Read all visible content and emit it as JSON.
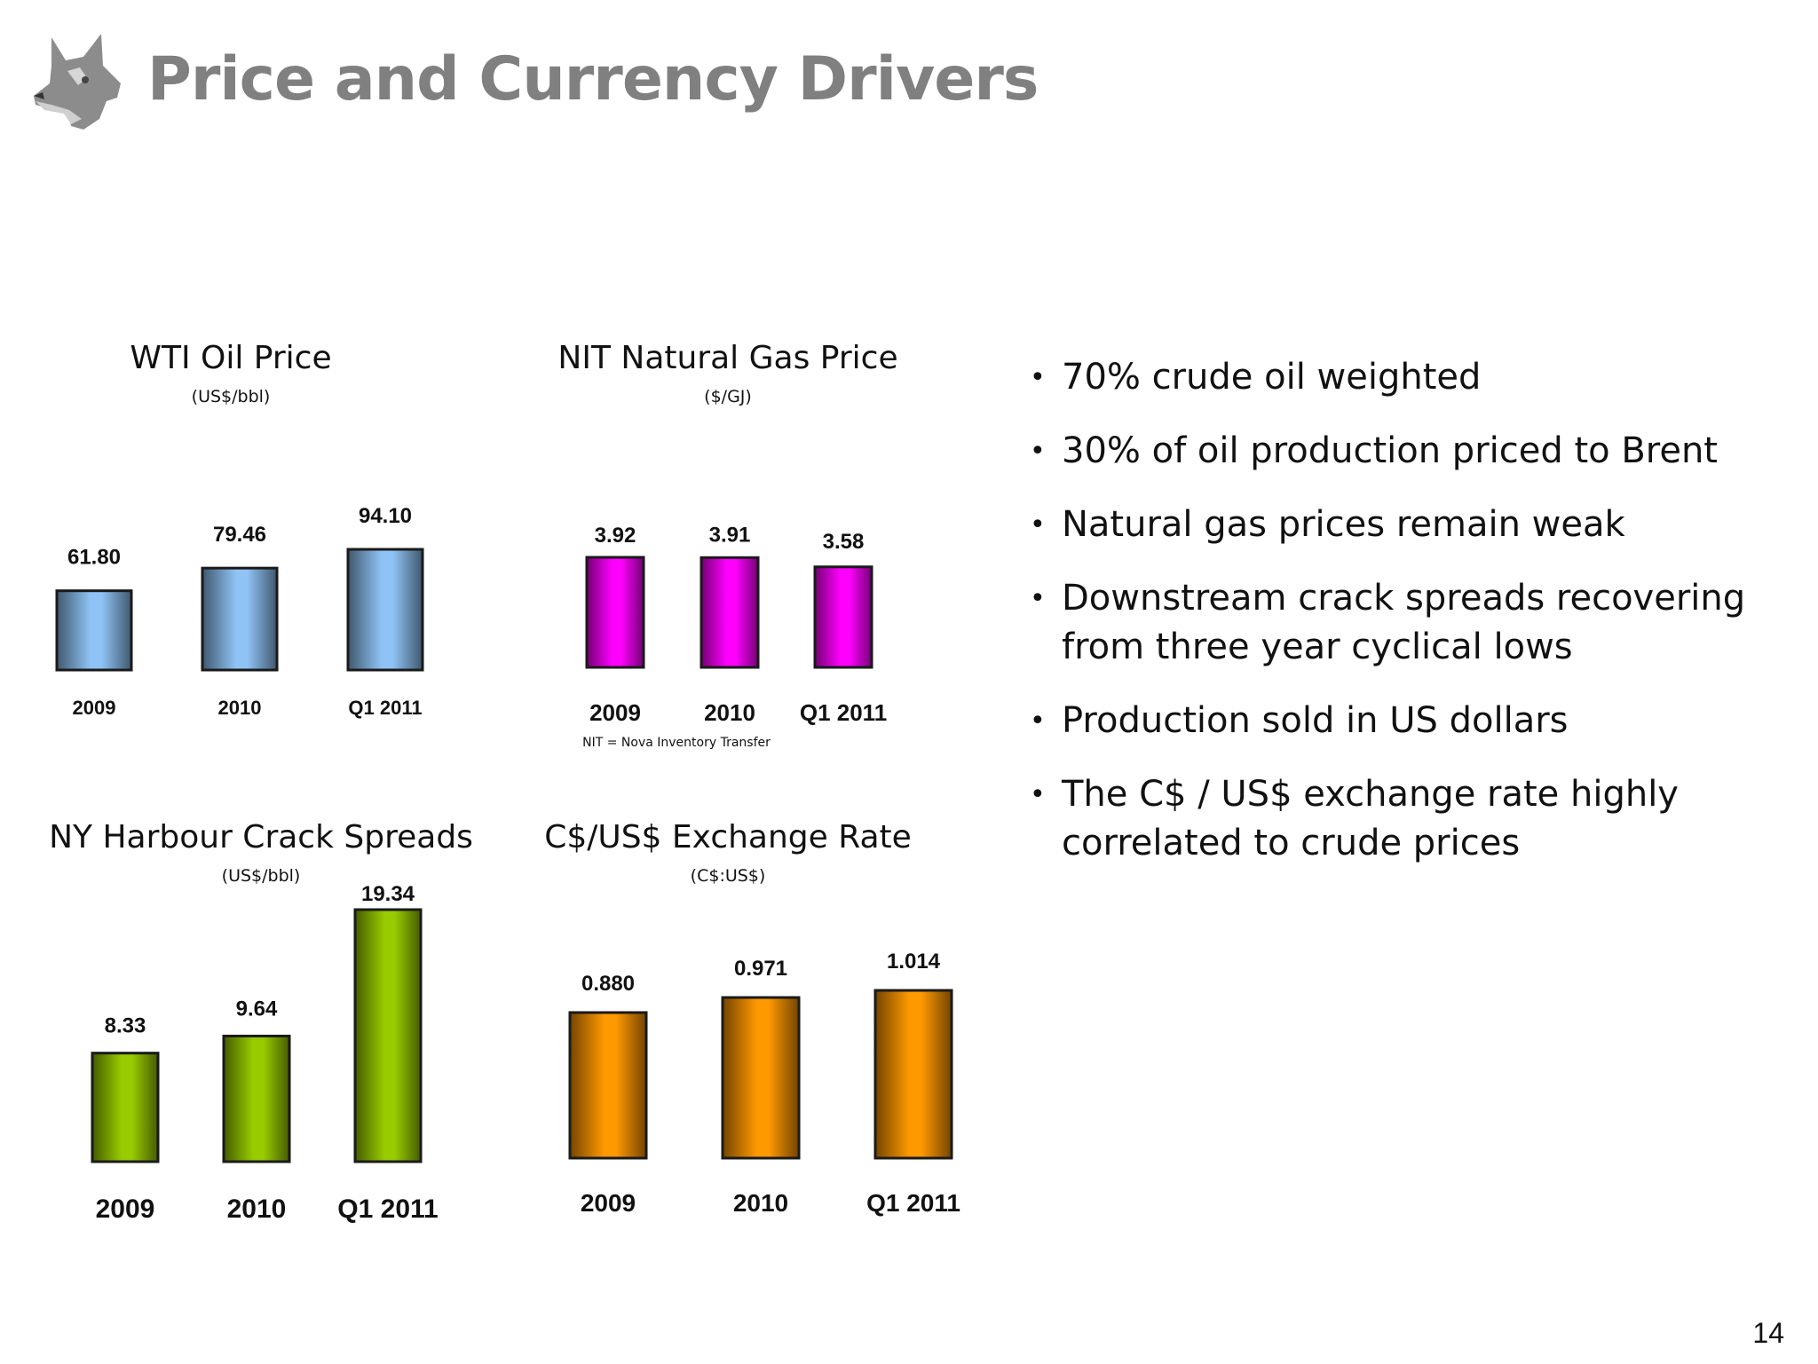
{
  "page": {
    "title": "Price and Currency Drivers",
    "number": "14",
    "logo_icon": "husky-dog-head-icon"
  },
  "bullets": [
    "70% crude oil weighted",
    "30% of oil production priced to Brent",
    "Natural gas prices remain weak",
    "Downstream crack spreads recovering from three year cyclical lows",
    "Production sold in US dollars",
    "The C$ / US$ exchange rate highly correlated to crude prices"
  ],
  "chart_data": [
    {
      "id": "wti",
      "type": "bar",
      "title": "WTI Oil Price",
      "unit": "(US$/bbl)",
      "categories": [
        "2009",
        "2010",
        "Q1 2011"
      ],
      "values": [
        61.8,
        79.46,
        94.1
      ],
      "value_labels": [
        "61.80",
        "79.46",
        "94.10"
      ],
      "color": "#8fc3f5",
      "footnote": ""
    },
    {
      "id": "nit",
      "type": "bar",
      "title": "NIT Natural Gas Price",
      "unit": "($/GJ)",
      "categories": [
        "2009",
        "2010",
        "Q1 2011"
      ],
      "values": [
        3.92,
        3.91,
        3.58
      ],
      "value_labels": [
        "3.92",
        "3.91",
        "3.58"
      ],
      "color": "#ff00ff",
      "footnote": "NIT = Nova Inventory Transfer"
    },
    {
      "id": "crack",
      "type": "bar",
      "title": "NY Harbour Crack Spreads",
      "unit": "(US$/bbl)",
      "categories": [
        "2009",
        "2010",
        "Q1 2011"
      ],
      "values": [
        8.33,
        9.64,
        19.34
      ],
      "value_labels": [
        "8.33",
        "9.64",
        "19.34"
      ],
      "color": "#99cc00",
      "footnote": ""
    },
    {
      "id": "fx",
      "type": "bar",
      "title": "C$/US$ Exchange Rate",
      "unit": "(C$:US$)",
      "categories": [
        "2009",
        "2010",
        "Q1 2011"
      ],
      "values": [
        0.88,
        0.971,
        1.014
      ],
      "value_labels": [
        "0.880",
        "0.971",
        "1.014"
      ],
      "color": "#ff9900",
      "footnote": ""
    }
  ]
}
